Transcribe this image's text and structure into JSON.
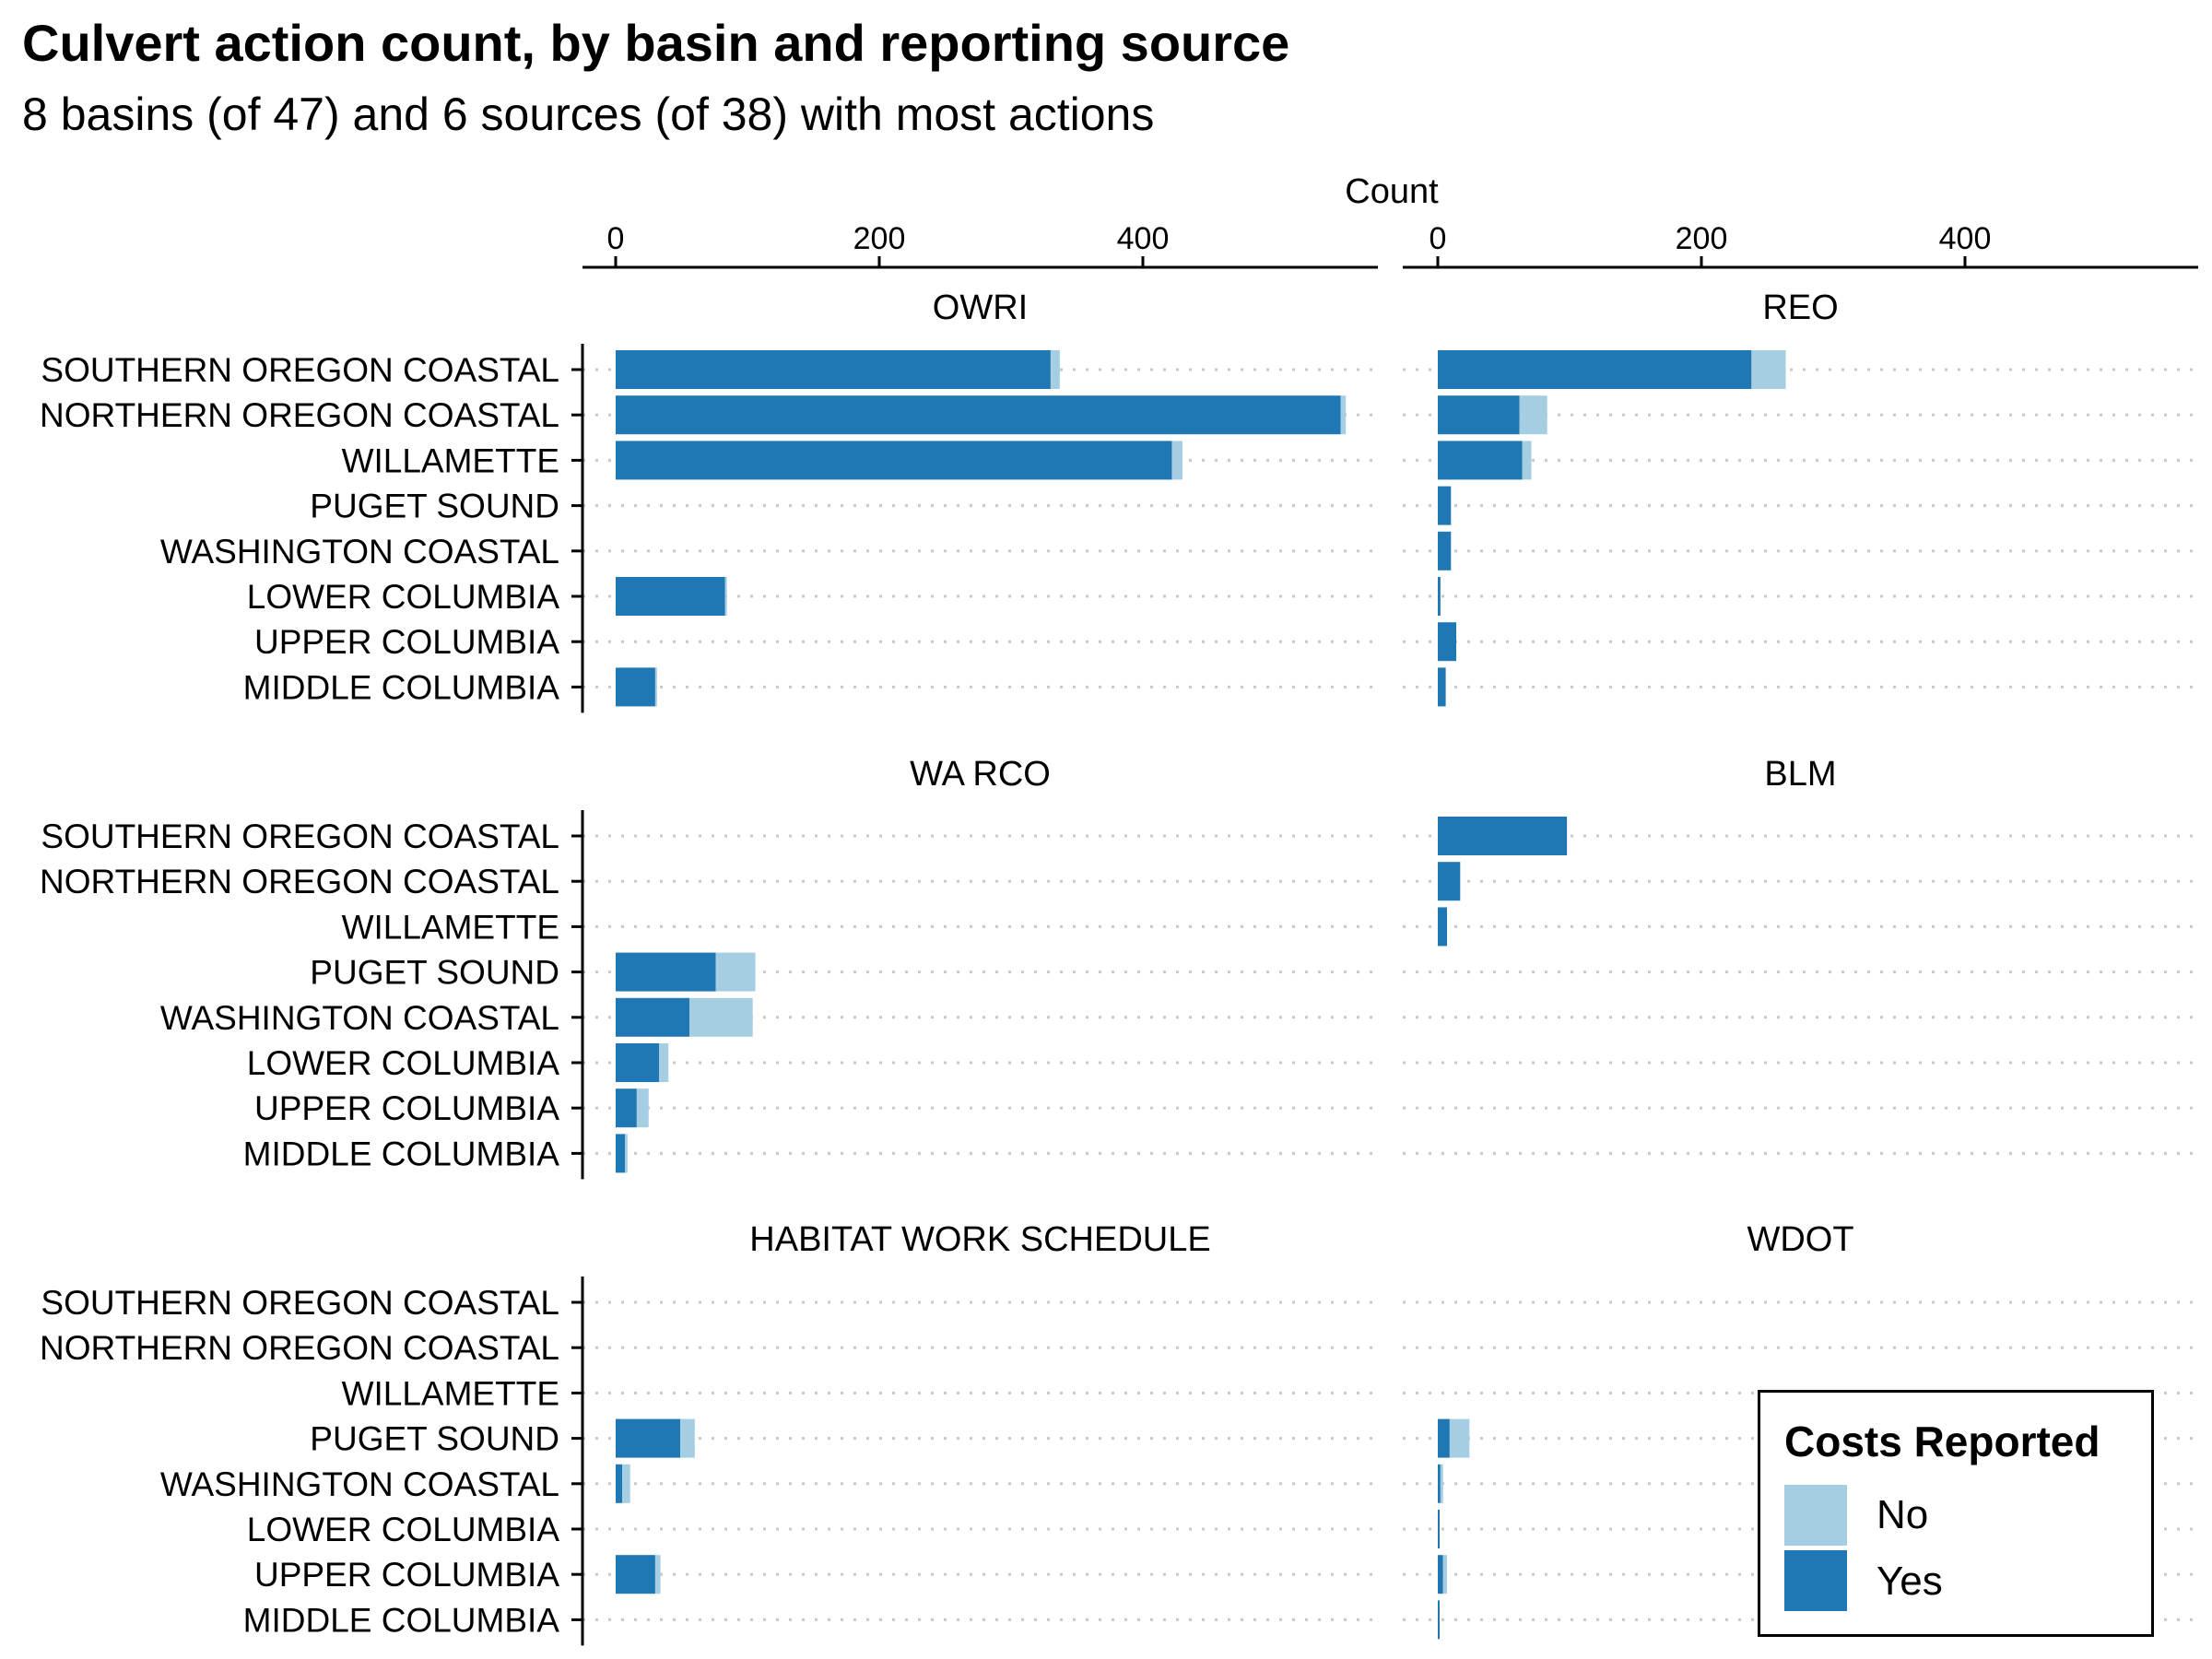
{
  "colors": {
    "no": "#a6cee3",
    "yes": "#1f78b4",
    "grid": "#c8c8c8"
  },
  "chart_data": {
    "type": "bar",
    "orientation": "horizontal",
    "stacked": true,
    "title": "Culvert action count, by basin and reporting source",
    "subtitle": "8 basins (of 47) and 6 sources (of 38) with most actions",
    "xlabel": "Count",
    "x_position": "top",
    "xlim": [
      0,
      580
    ],
    "x_ticks": [
      "0",
      "200",
      "400"
    ],
    "grid": "dotted horizontal",
    "legend": {
      "title": "Costs Reported",
      "entries": [
        "No",
        "Yes"
      ],
      "placement": "bottom-right"
    },
    "categories": [
      "SOUTHERN OREGON COASTAL",
      "NORTHERN OREGON COASTAL",
      "WILLAMETTE",
      "PUGET SOUND",
      "WASHINGTON COASTAL",
      "LOWER COLUMBIA",
      "UPPER COLUMBIA",
      "MIDDLE COLUMBIA"
    ],
    "facets": [
      {
        "name": "OWRI",
        "series": [
          {
            "name": "Yes",
            "values": [
              330,
              550,
              422,
              0,
              0,
              83,
              0,
              30
            ]
          },
          {
            "name": "No",
            "values": [
              7,
              4,
              8,
              0,
              0,
              1,
              0,
              1
            ]
          }
        ]
      },
      {
        "name": "REO",
        "series": [
          {
            "name": "Yes",
            "values": [
              238,
              62,
              64,
              10,
              10,
              2,
              14,
              6
            ]
          },
          {
            "name": "No",
            "values": [
              26,
              21,
              7,
              0,
              0,
              0,
              0,
              0
            ]
          }
        ]
      },
      {
        "name": "WA RCO",
        "series": [
          {
            "name": "Yes",
            "values": [
              0,
              0,
              0,
              76,
              56,
              33,
              16,
              7
            ]
          },
          {
            "name": "No",
            "values": [
              0,
              0,
              0,
              30,
              48,
              7,
              9,
              2
            ]
          }
        ]
      },
      {
        "name": "BLM",
        "series": [
          {
            "name": "Yes",
            "values": [
              98,
              17,
              7,
              0,
              0,
              0,
              0,
              0
            ]
          },
          {
            "name": "No",
            "values": [
              0,
              0,
              0,
              0,
              0,
              0,
              0,
              0
            ]
          }
        ]
      },
      {
        "name": "HABITAT WORK SCHEDULE",
        "series": [
          {
            "name": "Yes",
            "values": [
              0,
              0,
              0,
              49,
              5,
              0,
              30,
              0
            ]
          },
          {
            "name": "No",
            "values": [
              0,
              0,
              0,
              11,
              6,
              0,
              4,
              0
            ]
          }
        ]
      },
      {
        "name": "WDOT",
        "series": [
          {
            "name": "Yes",
            "values": [
              0,
              0,
              0,
              9,
              2,
              1,
              4,
              1
            ]
          },
          {
            "name": "No",
            "values": [
              0,
              0,
              0,
              15,
              2,
              0,
              3,
              0
            ]
          }
        ]
      }
    ]
  }
}
